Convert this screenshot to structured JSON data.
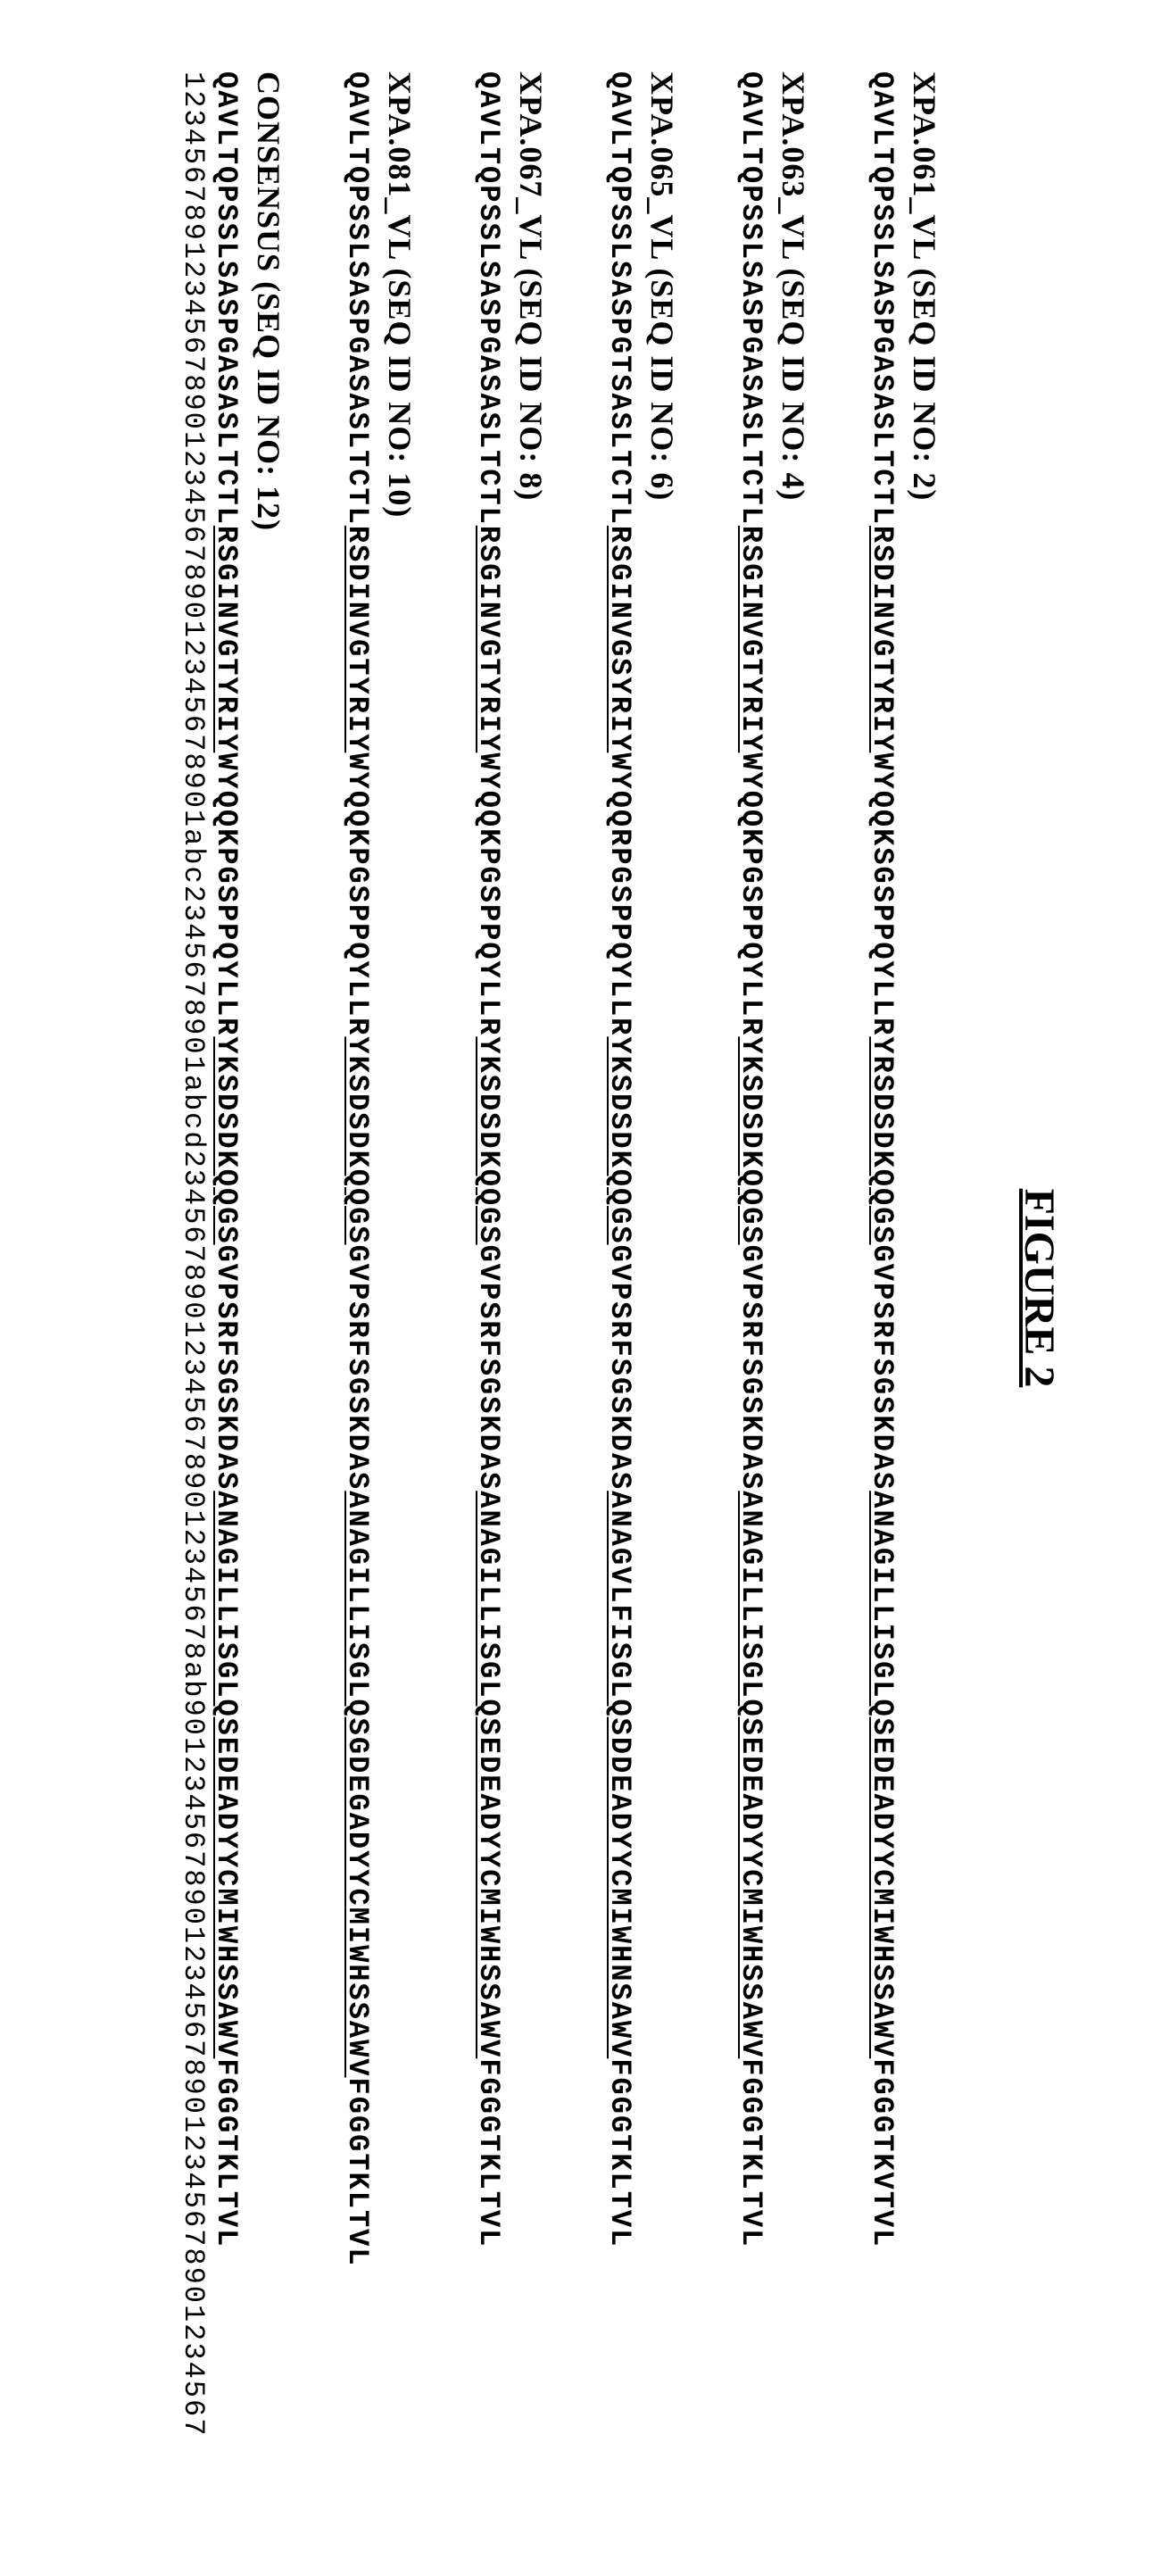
{
  "figure_title": "FIGURE 2",
  "sequences": [
    {
      "id": "xpa061",
      "label": "XPA.061_VL  (SEQ ID NO: 2)",
      "segments": [
        {
          "text": "QAVLTQPSSLSASPGASASLTCTL",
          "underline": false
        },
        {
          "text": "RSDINVGTYRIY",
          "underline": true
        },
        {
          "text": "WYQQKSGSPPQYLLR",
          "underline": false
        },
        {
          "text": "YRSDSDKQQGS",
          "underline": true
        },
        {
          "text": "GVPSRFSGSKDAS",
          "underline": false
        },
        {
          "text": "ANAGILLISGLQSEDEADYYC",
          "underline": true
        },
        {
          "text": "MIWHSSAWV",
          "underline": true
        },
        {
          "text": "FGGGTKVTVL",
          "underline": false
        }
      ]
    },
    {
      "id": "xpa063",
      "label": "XPA.063_VL  (SEQ ID NO: 4)",
      "segments": [
        {
          "text": "QAVLTQPSSLSASPGASASLTCTL",
          "underline": false
        },
        {
          "text": "RSGINVGTYRIY",
          "underline": true
        },
        {
          "text": "WYQQKPGSPPQYLLR",
          "underline": false
        },
        {
          "text": "YKSDSDKQQGS",
          "underline": true
        },
        {
          "text": "GVPSRFSGSKDAS",
          "underline": false
        },
        {
          "text": "ANAGILLISGLQSEDEADYYC",
          "underline": true
        },
        {
          "text": "MIWHSSAWV",
          "underline": true
        },
        {
          "text": "FGGGTKLTVL",
          "underline": false
        }
      ]
    },
    {
      "id": "xpa065",
      "label": "XPA.065_VL  (SEQ ID NO: 6)",
      "segments": [
        {
          "text": "QAVLTQPSSLSASPGTSASLTCTL",
          "underline": false
        },
        {
          "text": "RSGINVGSYRIY",
          "underline": true
        },
        {
          "text": "WYQQRPGSPPQYLLR",
          "underline": false
        },
        {
          "text": "YKSDSDKQQGS",
          "underline": true
        },
        {
          "text": "GVPSRFSGSKDAS",
          "underline": false
        },
        {
          "text": "ANAGVLFISGLQSDDEADYYC",
          "underline": true
        },
        {
          "text": "MIWHNSAWV",
          "underline": true
        },
        {
          "text": "FGGGTKLTVL",
          "underline": false
        }
      ]
    },
    {
      "id": "xpa067",
      "label": "XPA.067_VL  (SEQ ID NO: 8)",
      "segments": [
        {
          "text": "QAVLTQPSSLSASPGASASLTCTL",
          "underline": false
        },
        {
          "text": "RSGINVGTYRIY",
          "underline": true
        },
        {
          "text": "WYQQKPGSPPQYLLR",
          "underline": false
        },
        {
          "text": "YKSDSDKQQGS",
          "underline": true
        },
        {
          "text": "GVPSRFSGSKDAS",
          "underline": false
        },
        {
          "text": "ANAGILLISGLQSEDEADYYC",
          "underline": true
        },
        {
          "text": "MIWHSSAWV",
          "underline": true
        },
        {
          "text": "FGGGTKLTVL",
          "underline": false
        }
      ]
    },
    {
      "id": "xpa081",
      "label": "XPA.081_VL  (SEQ ID NO: 10)",
      "segments": [
        {
          "text": "QAVLTQPSSLSASPGASASLTCTL",
          "underline": false
        },
        {
          "text": "RSDINVGTYRIY",
          "underline": true
        },
        {
          "text": "WYQQKPGSPPQYLLR",
          "underline": false
        },
        {
          "text": "YKSDSDKQQGS",
          "underline": true
        },
        {
          "text": "GVPSRFSGSKDAS",
          "underline": false
        },
        {
          "text": "ANAGILLISGLQSGDEGADYYC",
          "underline": true
        },
        {
          "text": "MIWHSSAWV",
          "underline": true
        },
        {
          "text": "FGGGTKLTVL",
          "underline": false
        }
      ]
    },
    {
      "id": "consensus",
      "label": "CONSENSUS  (SEQ ID NO: 12)",
      "segments": [
        {
          "text": "QAVLTQPSSLSASPGASASLTCTL",
          "underline": false
        },
        {
          "text": "RSGINVGTYRIY",
          "underline": true
        },
        {
          "text": "WYQQKPGSPPQYLLR",
          "underline": false
        },
        {
          "text": "YKSDSDKQQGS",
          "underline": true
        },
        {
          "text": "GVPSRFSGSKDAS",
          "underline": false
        },
        {
          "text": "ANAGILLISGLQSEDEADYYC",
          "underline": true
        },
        {
          "text": "MIWHSSAWV",
          "underline": true
        },
        {
          "text": "FGGGTKLTVL",
          "underline": false
        }
      ],
      "numbering": "1234567891234567890123456789012345678901abc2345678901abcd234567890123456789012345678ab901234567890123456789012345678901234567"
    }
  ],
  "styling": {
    "background_color": "#ffffff",
    "text_color": "#000000",
    "font_family_label": "Times New Roman",
    "font_family_sequence": "Courier New",
    "title_fontsize": 48,
    "label_fontsize": 36,
    "sequence_fontsize": 32,
    "letter_spacing": 2,
    "entry_margin_bottom": 60
  }
}
